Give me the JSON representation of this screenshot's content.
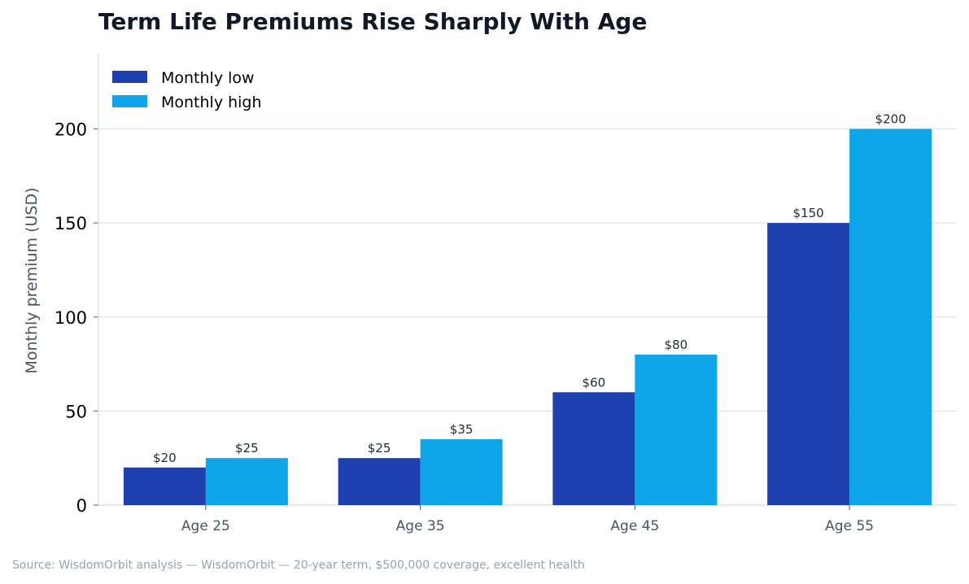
{
  "chart_data": {
    "type": "bar",
    "title": "Term Life Premiums Rise Sharply With Age",
    "ylabel": "Monthly premium (USD)",
    "xlabel": "",
    "ylim": [
      0,
      240
    ],
    "yticks": [
      0,
      50,
      100,
      150,
      200
    ],
    "categories": [
      "Age 25",
      "Age 35",
      "Age 45",
      "Age 55"
    ],
    "series": [
      {
        "name": "Monthly low",
        "color": "#1e40af",
        "values": [
          20,
          25,
          60,
          150
        ],
        "labels": [
          "$20",
          "$25",
          "$60",
          "$150"
        ]
      },
      {
        "name": "Monthly high",
        "color": "#0ea5e9",
        "values": [
          25,
          35,
          80,
          200
        ],
        "labels": [
          "$25",
          "$35",
          "$80",
          "$200"
        ]
      }
    ],
    "grid": true,
    "legend": "top-left",
    "source": "Source: WisdomOrbit analysis — WisdomOrbit — 20-year term, $500,000 coverage, excellent health"
  }
}
